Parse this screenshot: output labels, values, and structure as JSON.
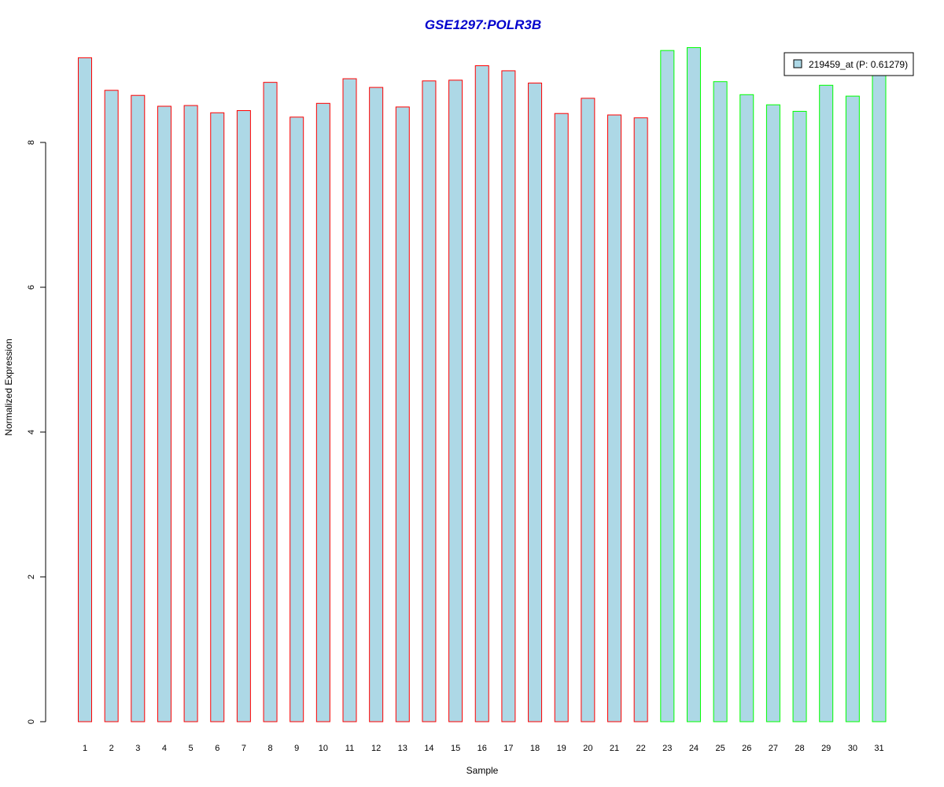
{
  "chart_data": {
    "type": "bar",
    "title": "GSE1297:POLR3B",
    "xlabel": "Sample",
    "ylabel": "Normalized Expression",
    "ylim": [
      0,
      9.4
    ],
    "yticks": [
      0,
      2,
      4,
      6,
      8
    ],
    "grid": false,
    "categories": [
      "1",
      "2",
      "3",
      "4",
      "5",
      "6",
      "7",
      "8",
      "9",
      "10",
      "11",
      "12",
      "13",
      "14",
      "15",
      "16",
      "17",
      "18",
      "19",
      "20",
      "21",
      "22",
      "23",
      "24",
      "25",
      "26",
      "27",
      "28",
      "29",
      "30",
      "31"
    ],
    "series": [
      {
        "name": "219459_at (P: 0.61279)",
        "values": [
          9.17,
          8.72,
          8.65,
          8.5,
          8.51,
          8.41,
          8.44,
          8.83,
          8.35,
          8.54,
          8.88,
          8.76,
          8.49,
          8.85,
          8.86,
          9.06,
          8.99,
          8.82,
          8.4,
          8.61,
          8.38,
          8.34,
          9.27,
          9.31,
          8.84,
          8.66,
          8.52,
          8.43,
          8.79,
          8.64,
          8.97
        ],
        "groups": [
          1,
          1,
          1,
          1,
          1,
          1,
          1,
          1,
          1,
          1,
          1,
          1,
          1,
          1,
          1,
          1,
          1,
          1,
          1,
          1,
          1,
          1,
          2,
          2,
          2,
          2,
          2,
          2,
          2,
          2,
          2
        ]
      }
    ],
    "legend": {
      "position": "top-right",
      "entries": [
        "219459_at (P: 0.61279)"
      ]
    },
    "colors": {
      "title": "#0000cc",
      "bar_fill": "#add8e6",
      "group_1_border": "#ff0000",
      "group_2_border": "#00ff00",
      "axis": "#000000"
    }
  }
}
